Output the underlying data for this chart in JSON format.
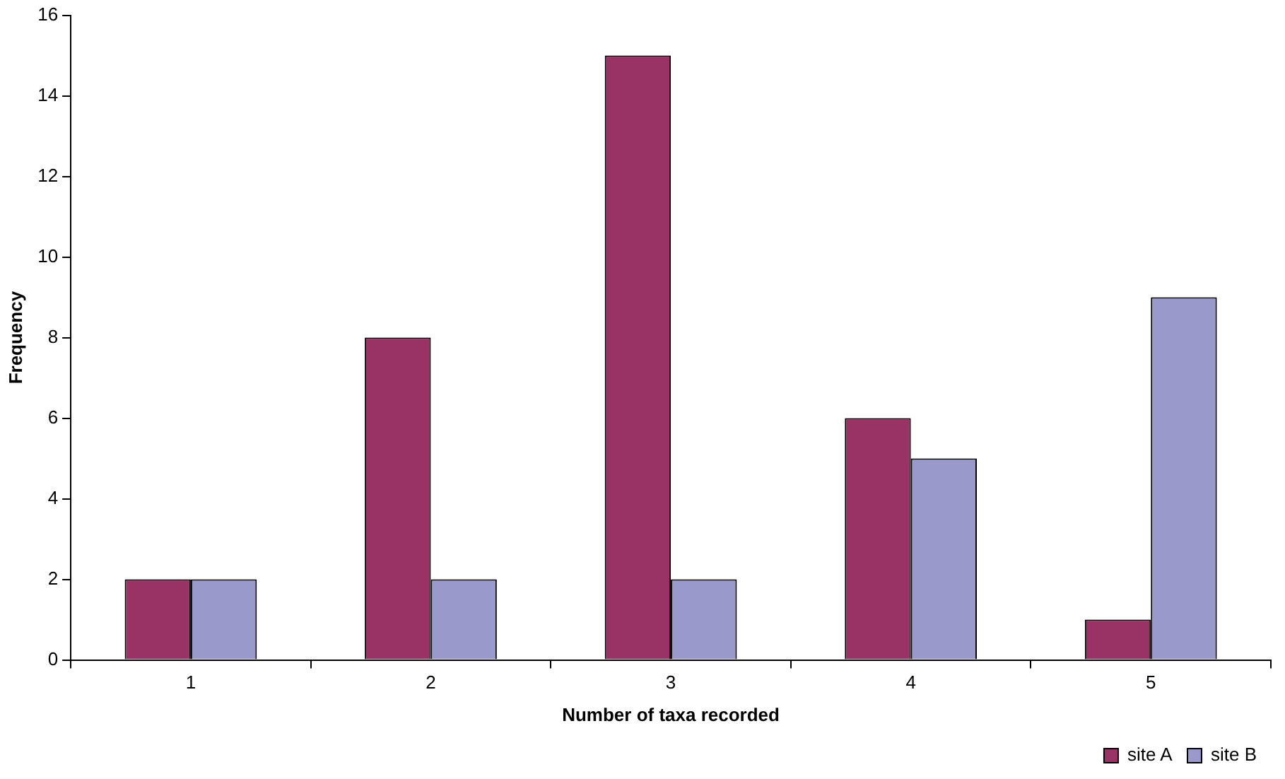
{
  "chart_data": {
    "type": "bar",
    "xlabel": "Number of taxa recorded",
    "ylabel": "Frequency",
    "categories": [
      "1",
      "2",
      "3",
      "4",
      "5"
    ],
    "series": [
      {
        "name": "site A",
        "color": "#993366",
        "values": [
          2,
          8,
          15,
          6,
          1
        ]
      },
      {
        "name": "site B",
        "color": "#9999cc",
        "values": [
          2,
          2,
          2,
          5,
          9
        ]
      }
    ],
    "ylim": [
      0,
      16
    ],
    "yticks": [
      0,
      2,
      4,
      6,
      8,
      10,
      12,
      14,
      16
    ],
    "grid": false,
    "legend": "bottom right"
  }
}
